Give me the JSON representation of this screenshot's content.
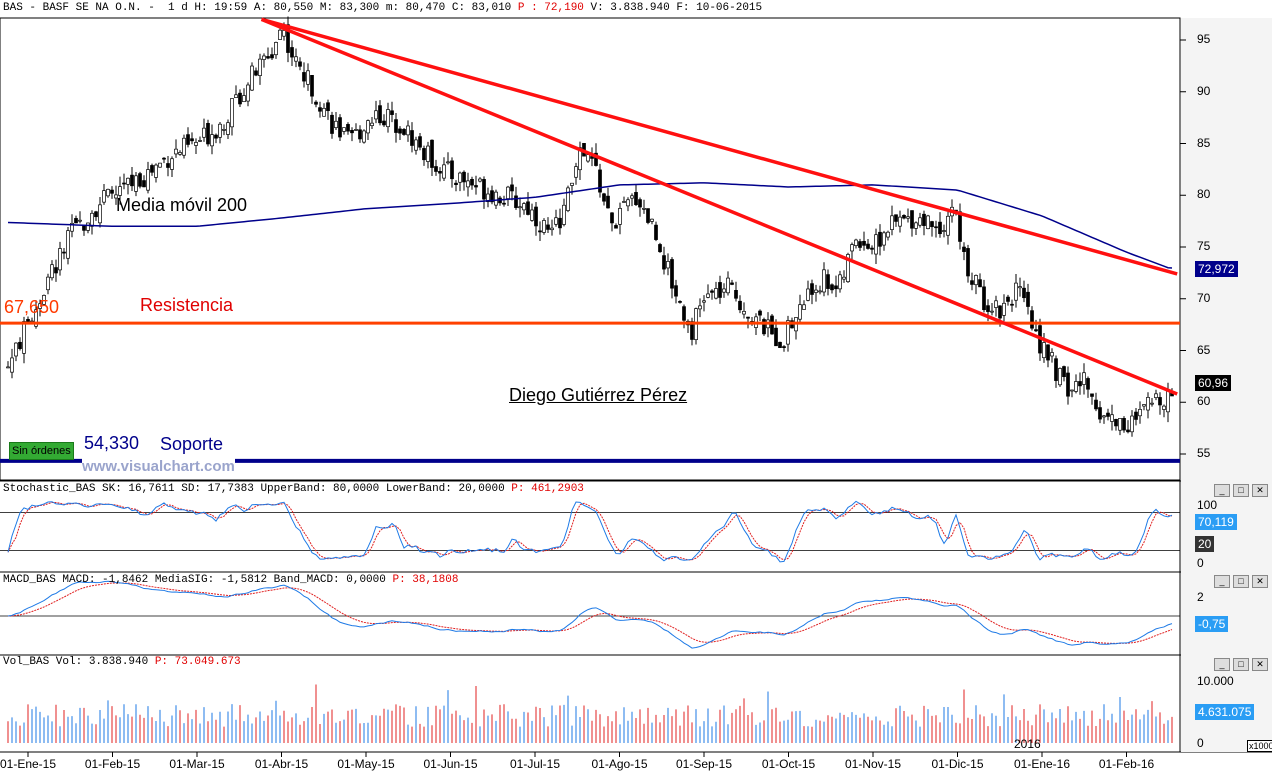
{
  "header": {
    "main": "BAS - BASF SE NA O.N. -  1 d H: 19:59 A: 80,550 M: 83,300 m: 80,470 C: 83,010 ",
    "p": "P : 72,190",
    "rest": " V: 3.838.940 F: 10-06-2015",
    "stoch_a": "Stochastic_BAS SK: 16,7611 SD: 17,7383 UpperBand: 80,0000 LowerBand: 20,0000 ",
    "stoch_p": "P: 461,2903",
    "macd_a": "MACD_BAS MACD: -1,8462 MediaSIG: -1,5812 Band_MACD: 0,0000 ",
    "macd_p": "P: 38,1808",
    "vol_a": "Vol_BAS Vol: 3.838.940 ",
    "vol_p": "P: 73.049.673"
  },
  "annotations": {
    "ma": "Media móvil 200",
    "resist": "Resistencia",
    "resist_val": "67,650",
    "support": "Soporte",
    "support_val": "54,330",
    "author": "Diego Gutiérrez Pérez",
    "watermark": "www.visualchart.com",
    "orders": "Sin órdenes",
    "year": "2016",
    "x1000": "x1000"
  },
  "tags": {
    "ma": "72,972",
    "last": "60,96",
    "stoch_k": "70,119",
    "stoch_low": "20",
    "macd": "-0,75",
    "vol": "4.631.075"
  },
  "win_buttons": [
    "_",
    "□",
    "✕"
  ],
  "chart_data": [
    {
      "type": "candlestick",
      "title": "BAS - BASF SE NA O.N.",
      "ylim": [
        53,
        97
      ],
      "yticks": [
        "95",
        "90",
        "85",
        "80",
        "75",
        "70",
        "65",
        "60",
        "55"
      ],
      "ytick_values": [
        95,
        90,
        85,
        80,
        75,
        70,
        65,
        60,
        55
      ],
      "xticks": [
        "01-Ene-15",
        "01-Feb-15",
        "01-Mar-15",
        "01-Abr-15",
        "01-May-15",
        "01-Jun-15",
        "01-Jul-15",
        "01-Ago-15",
        "01-Sep-15",
        "01-Oct-15",
        "01-Nov-15",
        "01-Dic-15",
        "01-Ene-16",
        "01-Feb-16"
      ],
      "close_points": [
        [
          0,
          67.6
        ],
        [
          0.25,
          72
        ],
        [
          0.5,
          76
        ],
        [
          0.8,
          79
        ],
        [
          1,
          80
        ],
        [
          1.4,
          82
        ],
        [
          1.7,
          84
        ],
        [
          2,
          85
        ],
        [
          2.3,
          87
        ],
        [
          2.6,
          91
        ],
        [
          2.9,
          94
        ],
        [
          3.0,
          96.5
        ],
        [
          3.15,
          93
        ],
        [
          3.4,
          90
        ],
        [
          3.6,
          87
        ],
        [
          3.8,
          85
        ],
        [
          4.1,
          88
        ],
        [
          4.4,
          87
        ],
        [
          4.7,
          84
        ],
        [
          5.0,
          82
        ],
        [
          5.3,
          81
        ],
        [
          5.6,
          80
        ],
        [
          5.9,
          79
        ],
        [
          6.0,
          78
        ],
        [
          6.2,
          76
        ],
        [
          6.4,
          80
        ],
        [
          6.5,
          84
        ],
        [
          6.7,
          83
        ],
        [
          6.9,
          77
        ],
        [
          7.2,
          80
        ],
        [
          7.4,
          77
        ],
        [
          7.6,
          72
        ],
        [
          7.75,
          69
        ],
        [
          7.85,
          67
        ],
        [
          8.0,
          70
        ],
        [
          8.3,
          71
        ],
        [
          8.6,
          68
        ],
        [
          8.9,
          66
        ],
        [
          9.0,
          67
        ],
        [
          9.2,
          70
        ],
        [
          9.4,
          72
        ],
        [
          9.6,
          71
        ],
        [
          9.8,
          76
        ],
        [
          10.0,
          75
        ],
        [
          10.2,
          77
        ],
        [
          10.5,
          78
        ],
        [
          10.8,
          77
        ],
        [
          10.95,
          79
        ],
        [
          11.1,
          73
        ],
        [
          11.3,
          70
        ],
        [
          11.5,
          69
        ],
        [
          11.7,
          71
        ],
        [
          11.9,
          67
        ],
        [
          12.1,
          64
        ],
        [
          12.3,
          61
        ],
        [
          12.5,
          62
        ],
        [
          12.7,
          59
        ],
        [
          12.9,
          58
        ],
        [
          13.1,
          58
        ],
        [
          13.3,
          60
        ],
        [
          13.5,
          61
        ]
      ],
      "ma200": [
        [
          0,
          77.3
        ],
        [
          1,
          77
        ],
        [
          2,
          77
        ],
        [
          3,
          77.8
        ],
        [
          4,
          78.7
        ],
        [
          5,
          79.2
        ],
        [
          6,
          79.8
        ],
        [
          7,
          81
        ],
        [
          8,
          81.2
        ],
        [
          9,
          80.8
        ],
        [
          10,
          81
        ],
        [
          11,
          80.5
        ],
        [
          12,
          78
        ],
        [
          13,
          74.5
        ],
        [
          13.5,
          72.97
        ]
      ],
      "resistance": 67.65,
      "support": 54.33,
      "trendlines": [
        {
          "from": [
            3.0,
            96.9
          ],
          "to": [
            13.6,
            72.4
          ]
        },
        {
          "from": [
            3.0,
            96.9
          ],
          "to": [
            13.6,
            60.8
          ]
        }
      ]
    },
    {
      "type": "line",
      "title": "Stochastic_BAS",
      "series": [
        {
          "name": "SK",
          "color": "#1e7ae6"
        },
        {
          "name": "SD",
          "color": "#e02020"
        }
      ],
      "yticks": [
        "100",
        "0"
      ],
      "bands": [
        80,
        20
      ],
      "ylim": [
        0,
        100
      ]
    },
    {
      "type": "line",
      "title": "MACD_BAS",
      "series": [
        {
          "name": "MACD",
          "color": "#1e7ae6"
        },
        {
          "name": "MediaSIG",
          "color": "#e02020"
        }
      ],
      "yticks": [
        "2"
      ],
      "band": 0
    },
    {
      "type": "bar",
      "title": "Vol_BAS",
      "yticks": [
        "10.000",
        "0"
      ],
      "ylim": [
        0,
        11000
      ],
      "unit": "x1000"
    }
  ]
}
